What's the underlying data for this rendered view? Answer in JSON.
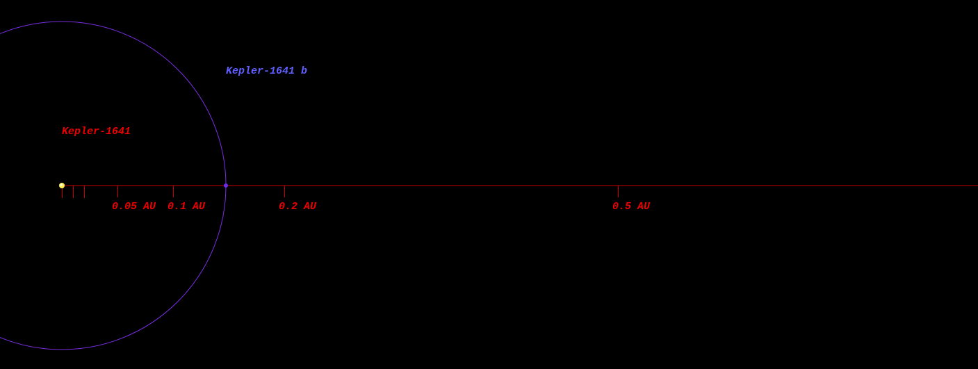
{
  "star": {
    "label": "Kepler-1641"
  },
  "planet": {
    "label": "Kepler-1641 b"
  },
  "scale": {
    "tick_labels": [
      "0.05 AU",
      "0.1 AU",
      "0.2 AU",
      "0.5 AU"
    ]
  }
}
